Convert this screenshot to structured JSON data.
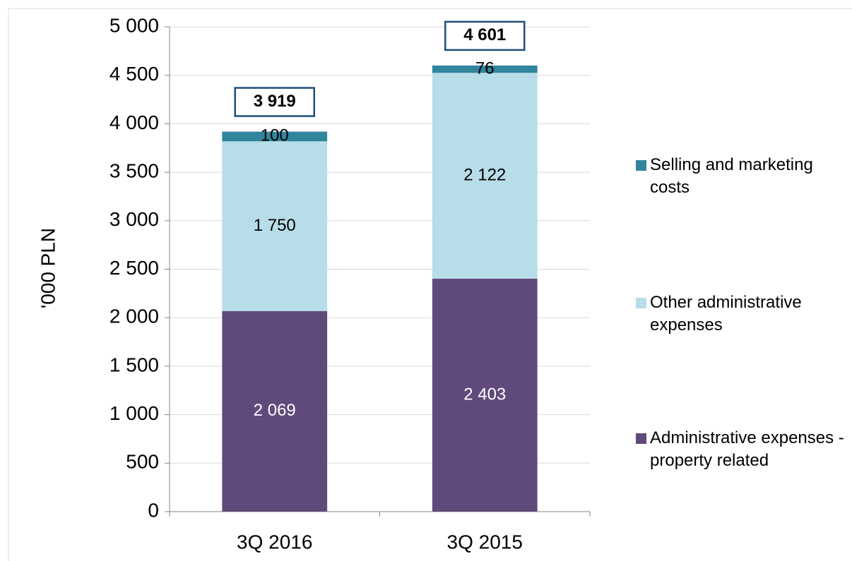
{
  "chart_data": {
    "type": "stacked_bar",
    "y_label": "'000 PLN",
    "categories": [
      "3Q 2016",
      "3Q 2015"
    ],
    "series": [
      {
        "name": "Administrative expenses - property related",
        "color": "#604a7b",
        "values": [
          2069,
          2403
        ],
        "value_labels": [
          "2 069",
          "2 403"
        ]
      },
      {
        "name": "Other administrative expenses",
        "color": "#b7dde8",
        "values": [
          1750,
          2122
        ],
        "value_labels": [
          "1 750",
          "2 122"
        ]
      },
      {
        "name": "Selling and marketing costs",
        "color": "#31859c",
        "values": [
          100,
          76
        ]
      }
    ],
    "totals": {
      "values": [
        3919,
        4601
      ],
      "value_labels": [
        "3 919",
        "4 601"
      ]
    },
    "ylim": [
      0,
      5000
    ],
    "yticks": [
      0,
      500,
      {
        "value": 1000,
        "label": "1 000"
      },
      {
        "value": 1500,
        "label": "1 500"
      },
      {
        "value": 2000,
        "label": "2 000"
      },
      {
        "value": 2500,
        "label": "2 500"
      },
      {
        "value": 3000,
        "label": "3 000"
      },
      {
        "value": 3500,
        "label": "3 500"
      },
      {
        "value": 4000,
        "label": "4 000"
      },
      {
        "value": 4500,
        "label": "4 500"
      },
      {
        "value": 5000,
        "label": "5 000"
      }
    ],
    "grid": true,
    "legend": "right"
  }
}
